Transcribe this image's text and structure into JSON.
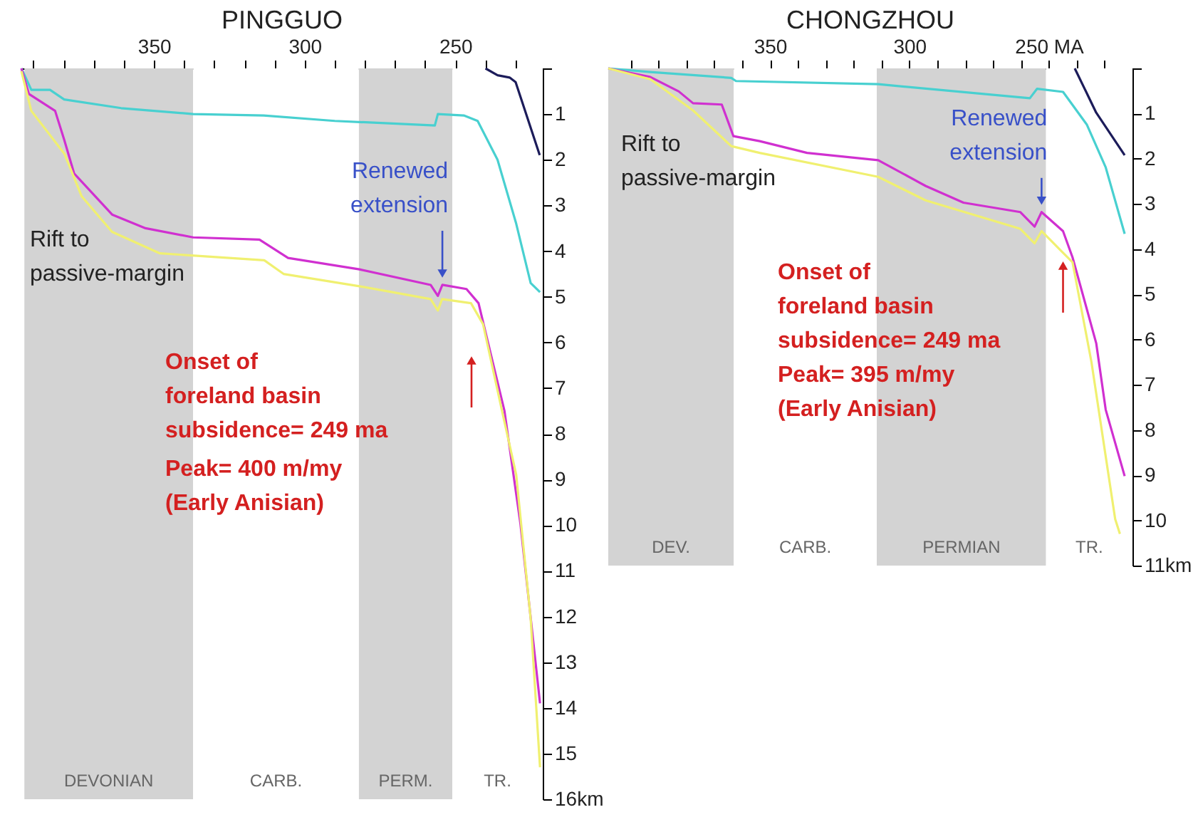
{
  "chart_data": [
    {
      "type": "line",
      "title": "PINGGUO",
      "xlim": [
        394,
        221
      ],
      "ylim": [
        16,
        0
      ],
      "xticks": [
        {
          "value": 390,
          "label": null
        },
        {
          "value": 380,
          "label": null
        },
        {
          "value": 370,
          "label": null
        },
        {
          "value": 360,
          "label": null
        },
        350,
        {
          "value": 340,
          "label": null
        },
        {
          "value": 330,
          "label": null
        },
        {
          "value": 320,
          "label": null
        },
        {
          "value": 310,
          "label": null
        },
        300,
        {
          "value": 290,
          "label": null
        },
        {
          "value": 280,
          "label": null
        },
        {
          "value": 270,
          "label": null
        },
        {
          "value": 260,
          "label": null
        },
        250,
        {
          "value": 240,
          "label": null
        },
        {
          "value": 230,
          "label": null
        }
      ],
      "yticks": [
        {
          "value": 0,
          "label": null
        },
        1,
        2,
        3,
        4,
        5,
        6,
        7,
        8,
        9,
        10,
        11,
        12,
        13,
        14,
        15,
        {
          "value": 16,
          "label": "16km"
        }
      ],
      "grid": false,
      "series": [
        {
          "color": "#1c1c5a",
          "x": [
            240,
            236,
            232,
            230,
            222
          ],
          "values": [
            0,
            0.15,
            0.2,
            0.3,
            1.9
          ]
        },
        {
          "color": "#48d0d0",
          "x": [
            394,
            390.7,
            384.5,
            379.8,
            360.9,
            337,
            313.6,
            290,
            256.8,
            255.8,
            247.2,
            242.6,
            236,
            229.8,
            225,
            221.9
          ],
          "values": [
            0,
            0.47,
            0.47,
            0.68,
            0.87,
            1.0,
            1.03,
            1.15,
            1.25,
            1.0,
            1.03,
            1.15,
            2.0,
            3.4,
            4.7,
            4.9
          ]
        },
        {
          "color": "#d030d0",
          "x": [
            394,
            391.5,
            382.8,
            379.8,
            376.5,
            363.9,
            352.8,
            337,
            315,
            305.5,
            281.8,
            258.2,
            255.8,
            254.3,
            246.3,
            242.3,
            233.7,
            228.4,
            221.9
          ],
          "values": [
            0,
            0.56,
            0.93,
            1.56,
            2.3,
            3.2,
            3.5,
            3.7,
            3.75,
            4.15,
            4.4,
            4.74,
            4.98,
            4.74,
            4.83,
            5.14,
            7.5,
            9.97,
            13.9
          ]
        },
        {
          "color": "#f0f070",
          "x": [
            394,
            390.7,
            379.7,
            374,
            363.9,
            348,
            313.4,
            307,
            281.8,
            258.2,
            255.8,
            254.4,
            244.8,
            240.8,
            234.5,
            229.8,
            225,
            221.9
          ],
          "values": [
            0.06,
            0.93,
            1.87,
            2.8,
            3.58,
            4.05,
            4.2,
            4.5,
            4.77,
            5.05,
            5.3,
            5.05,
            5.14,
            5.6,
            7.5,
            8.9,
            12.05,
            15.3
          ]
        }
      ],
      "bands": [
        {
          "axis": "x",
          "from": 393,
          "to": 337,
          "label": "DEVONIAN",
          "color": "#d3d3d3"
        },
        {
          "axis": "x",
          "from": 337,
          "to": 282,
          "label": "CARB.",
          "color": "#ffffff"
        },
        {
          "axis": "x",
          "from": 282,
          "to": 251,
          "label": "PERM.",
          "color": "#d3d3d3"
        },
        {
          "axis": "x",
          "from": 251,
          "to": 221,
          "label": "TR.",
          "color": "#ffffff"
        }
      ],
      "annotations": [
        "Rift to\npassive-margin",
        {
          "text": "Renewed\nextension",
          "x": 254.3,
          "y": 4.74
        },
        "Onset of\nforeland basin\nsubsidence= 249 ma",
        "Peak= 400 m/my\n(Early Anisian)"
      ]
    },
    {
      "type": "line",
      "title": "CHONGZHOU",
      "xlim": [
        408,
        220
      ],
      "ylim": [
        11,
        0
      ],
      "xticks": [
        {
          "value": 400,
          "label": null
        },
        {
          "value": 390,
          "label": null
        },
        {
          "value": 380,
          "label": null
        },
        {
          "value": 370,
          "label": null
        },
        {
          "value": 360,
          "label": null
        },
        350,
        {
          "value": 340,
          "label": null
        },
        {
          "value": 330,
          "label": null
        },
        {
          "value": 320,
          "label": null
        },
        {
          "value": 310,
          "label": null
        },
        300,
        {
          "value": 290,
          "label": null
        },
        {
          "value": 280,
          "label": null
        },
        {
          "value": 270,
          "label": null
        },
        {
          "value": 260,
          "label": null
        },
        {
          "value": 250,
          "label": "250 MA"
        },
        {
          "value": 240,
          "label": null
        },
        {
          "value": 230,
          "label": null
        }
      ],
      "yticks": [
        {
          "value": 0,
          "label": null
        },
        1,
        2,
        3,
        4,
        5,
        6,
        7,
        8,
        9,
        10,
        {
          "value": 11,
          "label": "11km"
        }
      ],
      "grid": false,
      "series": [
        {
          "color": "#1c1c5a",
          "x": [
            240.7,
            233,
            222.8
          ],
          "values": [
            0,
            0.98,
            1.92
          ]
        },
        {
          "color": "#48d0d0",
          "x": [
            408,
            392.9,
            363.9,
            362.2,
            311.2,
            256.8,
            254.2,
            244.9,
            236.4,
            229.6,
            222.8
          ],
          "values": [
            0,
            0.08,
            0.21,
            0.28,
            0.35,
            0.66,
            0.45,
            0.52,
            1.24,
            2.19,
            3.66
          ]
        },
        {
          "color": "#d030d0",
          "x": [
            408,
            392.9,
            382.7,
            377.6,
            367.3,
            363.1,
            353.7,
            336.7,
            311.2,
            294.2,
            280.6,
            260.2,
            255.1,
            252.6,
            244.9,
            241.5,
            233,
            229.6,
            222.8
          ],
          "values": [
            0,
            0.19,
            0.51,
            0.77,
            0.8,
            1.5,
            1.61,
            1.87,
            2.03,
            2.6,
            2.97,
            3.18,
            3.5,
            3.18,
            3.6,
            4.18,
            6.08,
            7.55,
            9.02
          ]
        },
        {
          "color": "#f0f070",
          "x": [
            408,
            392.9,
            377.6,
            363.9,
            353.7,
            311.2,
            294.2,
            260.2,
            255.1,
            252.6,
            244.9,
            241.5,
            234.7,
            226.2,
            224.5
          ],
          "values": [
            0,
            0.24,
            0.93,
            1.72,
            1.87,
            2.4,
            2.92,
            3.55,
            3.87,
            3.6,
            4.08,
            4.29,
            6.5,
            9.97,
            10.3
          ]
        }
      ],
      "bands": [
        {
          "axis": "x",
          "from": 408,
          "to": 363,
          "label": "DEV.",
          "color": "#d3d3d3"
        },
        {
          "axis": "x",
          "from": 363,
          "to": 311.7,
          "label": "CARB.",
          "color": "#ffffff"
        },
        {
          "axis": "x",
          "from": 311.7,
          "to": 251,
          "label": "PERMIAN",
          "color": "#d3d3d3"
        },
        {
          "axis": "x",
          "from": 251,
          "to": 220,
          "label": "TR.",
          "color": "#ffffff"
        }
      ],
      "annotations": [
        "Rift to\npassive-margin",
        {
          "text": "Renewed\nextension",
          "x": 252.6,
          "y": 3.18
        },
        {
          "text": "Onset of\nforeland basin\nsubsidence= 249 ma",
          "x": 244.9,
          "y": 4.08
        },
        "Peak= 395 m/my\n(Early Anisian)"
      ]
    }
  ]
}
